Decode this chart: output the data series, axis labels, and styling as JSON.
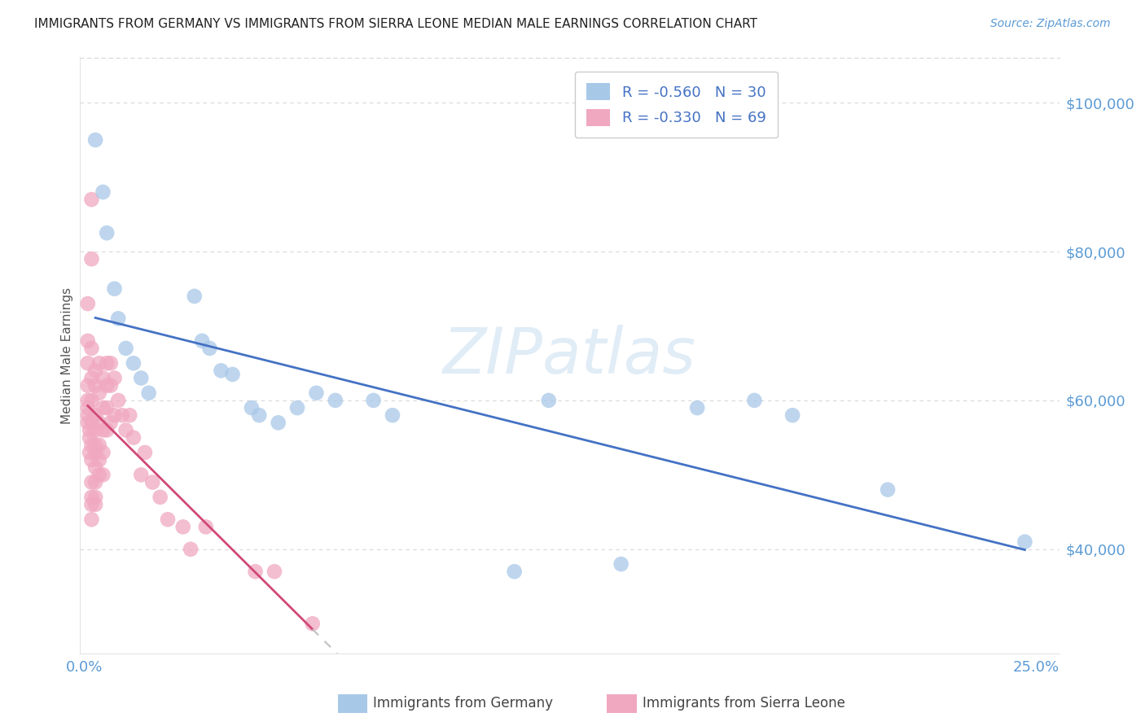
{
  "title": "IMMIGRANTS FROM GERMANY VS IMMIGRANTS FROM SIERRA LEONE MEDIAN MALE EARNINGS CORRELATION CHART",
  "source": "Source: ZipAtlas.com",
  "ylabel": "Median Male Earnings",
  "ytick_labels": [
    "$40,000",
    "$60,000",
    "$80,000",
    "$100,000"
  ],
  "ytick_values": [
    40000,
    60000,
    80000,
    100000
  ],
  "ymin": 26000,
  "ymax": 106000,
  "xmin": -0.001,
  "xmax": 0.256,
  "watermark": "ZIPatlas",
  "germany_color": "#a8c8e8",
  "germany_line_color": "#4472c4",
  "sierraleone_color": "#f0a8c0",
  "sierraleone_line_color": "#d04878",
  "sierraleone_dash_color": "#c0c0c0",
  "legend_text_color": "#4472c4",
  "axis_color": "#5b9bd5",
  "grid_color": "#d8d8d8",
  "bg_color": "#ffffff",
  "text_color": "#222222",
  "germany_points": [
    [
      0.003,
      95000
    ],
    [
      0.005,
      88000
    ],
    [
      0.006,
      82500
    ],
    [
      0.008,
      75000
    ],
    [
      0.009,
      71000
    ],
    [
      0.011,
      67000
    ],
    [
      0.013,
      65000
    ],
    [
      0.015,
      63000
    ],
    [
      0.017,
      61000
    ],
    [
      0.029,
      74000
    ],
    [
      0.031,
      68000
    ],
    [
      0.033,
      67000
    ],
    [
      0.036,
      64000
    ],
    [
      0.039,
      63500
    ],
    [
      0.044,
      59000
    ],
    [
      0.046,
      58000
    ],
    [
      0.051,
      57000
    ],
    [
      0.056,
      59000
    ],
    [
      0.061,
      61000
    ],
    [
      0.066,
      60000
    ],
    [
      0.076,
      60000
    ],
    [
      0.081,
      58000
    ],
    [
      0.113,
      37000
    ],
    [
      0.122,
      60000
    ],
    [
      0.141,
      38000
    ],
    [
      0.161,
      59000
    ],
    [
      0.176,
      60000
    ],
    [
      0.186,
      58000
    ],
    [
      0.211,
      48000
    ],
    [
      0.247,
      41000
    ]
  ],
  "sierraleone_points": [
    [
      0.001,
      73000
    ],
    [
      0.001,
      68000
    ],
    [
      0.001,
      65000
    ],
    [
      0.001,
      62000
    ],
    [
      0.001,
      60000
    ],
    [
      0.001,
      59000
    ],
    [
      0.001,
      58000
    ],
    [
      0.001,
      57000
    ],
    [
      0.0015,
      56000
    ],
    [
      0.0015,
      55000
    ],
    [
      0.0015,
      53000
    ],
    [
      0.002,
      87000
    ],
    [
      0.002,
      79000
    ],
    [
      0.002,
      67000
    ],
    [
      0.002,
      63000
    ],
    [
      0.002,
      60000
    ],
    [
      0.002,
      57000
    ],
    [
      0.002,
      54000
    ],
    [
      0.002,
      52000
    ],
    [
      0.002,
      49000
    ],
    [
      0.002,
      47000
    ],
    [
      0.002,
      46000
    ],
    [
      0.002,
      44000
    ],
    [
      0.003,
      64000
    ],
    [
      0.003,
      62000
    ],
    [
      0.003,
      58000
    ],
    [
      0.003,
      56000
    ],
    [
      0.003,
      54000
    ],
    [
      0.003,
      53000
    ],
    [
      0.003,
      51000
    ],
    [
      0.003,
      49000
    ],
    [
      0.003,
      47000
    ],
    [
      0.003,
      46000
    ],
    [
      0.004,
      65000
    ],
    [
      0.004,
      61000
    ],
    [
      0.004,
      57000
    ],
    [
      0.004,
      54000
    ],
    [
      0.004,
      52000
    ],
    [
      0.004,
      50000
    ],
    [
      0.005,
      63000
    ],
    [
      0.005,
      59000
    ],
    [
      0.005,
      56000
    ],
    [
      0.005,
      53000
    ],
    [
      0.005,
      50000
    ],
    [
      0.006,
      65000
    ],
    [
      0.006,
      62000
    ],
    [
      0.006,
      59000
    ],
    [
      0.006,
      56000
    ],
    [
      0.007,
      65000
    ],
    [
      0.007,
      62000
    ],
    [
      0.007,
      57000
    ],
    [
      0.008,
      63000
    ],
    [
      0.008,
      58000
    ],
    [
      0.009,
      60000
    ],
    [
      0.01,
      58000
    ],
    [
      0.011,
      56000
    ],
    [
      0.012,
      58000
    ],
    [
      0.013,
      55000
    ],
    [
      0.015,
      50000
    ],
    [
      0.016,
      53000
    ],
    [
      0.018,
      49000
    ],
    [
      0.02,
      47000
    ],
    [
      0.022,
      44000
    ],
    [
      0.026,
      43000
    ],
    [
      0.028,
      40000
    ],
    [
      0.032,
      43000
    ],
    [
      0.045,
      37000
    ],
    [
      0.05,
      37000
    ],
    [
      0.06,
      30000
    ]
  ],
  "title_fontsize": 11,
  "source_fontsize": 10,
  "axis_tick_fontsize": 13,
  "ylabel_fontsize": 11
}
